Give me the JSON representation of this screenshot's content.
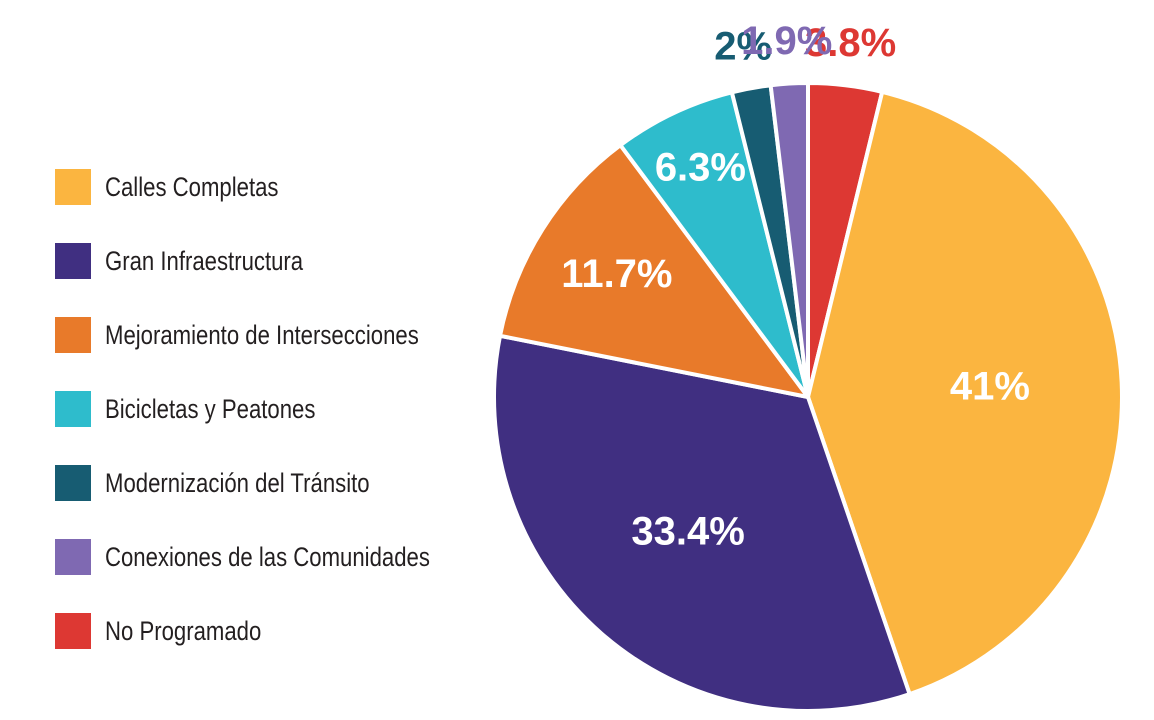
{
  "chart_data": {
    "type": "pie",
    "title": "",
    "legend_position": "left",
    "slices": [
      {
        "label": "No Programado",
        "value": 3.8,
        "value_label": "3.8%",
        "color": "#dd3833",
        "label_color": "#dd3833",
        "label_outside": true
      },
      {
        "label": "Calles Completas",
        "value": 41,
        "value_label": "41%",
        "color": "#fbb540",
        "label_color": "#ffffff",
        "label_outside": false
      },
      {
        "label": "Gran Infraestructura",
        "value": 33.4,
        "value_label": "33.4%",
        "color": "#402f81",
        "label_color": "#ffffff",
        "label_outside": false
      },
      {
        "label": "Mejoramiento de Intersecciones",
        "value": 11.7,
        "value_label": "11.7%",
        "color": "#e87a2a",
        "label_color": "#ffffff",
        "label_outside": false
      },
      {
        "label": "Bicicletas y Peatones",
        "value": 6.3,
        "value_label": "6.3%",
        "color": "#2ebccc",
        "label_color": "#ffffff",
        "label_outside": false
      },
      {
        "label": "Modernización del Tránsito",
        "value": 2,
        "value_label": "2%",
        "color": "#175c72",
        "label_color": "#175c72",
        "label_outside": true
      },
      {
        "label": "Conexiones de las Comunidades",
        "value": 1.9,
        "value_label": "1.9%",
        "color": "#7f69b2",
        "label_color": "#7f69b2",
        "label_outside": true
      }
    ],
    "legend": [
      {
        "label": "Calles Completas",
        "color": "#fbb540"
      },
      {
        "label": "Gran Infraestructura",
        "color": "#402f81"
      },
      {
        "label": "Mejoramiento de Intersecciones",
        "color": "#e87a2a"
      },
      {
        "label": "Bicicletas y Peatones",
        "color": "#2ebccc"
      },
      {
        "label": "Modernización del Tránsito",
        "color": "#175c72"
      },
      {
        "label": "Conexiones de las Comunidades",
        "color": "#7f69b2"
      },
      {
        "label": "No Programado",
        "color": "#dd3833"
      }
    ]
  }
}
